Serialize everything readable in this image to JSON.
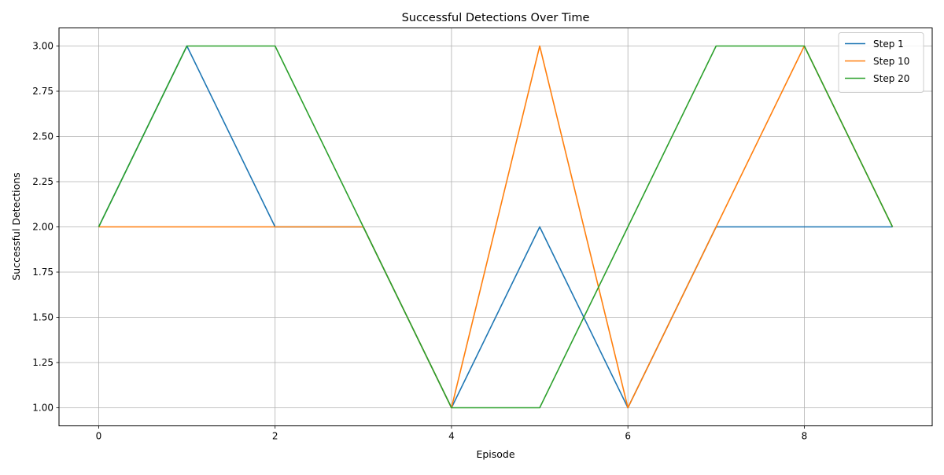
{
  "chart_data": {
    "type": "line",
    "title": "Successful Detections Over Time",
    "xlabel": "Episode",
    "ylabel": "Successful Detections",
    "x": [
      0,
      1,
      2,
      3,
      4,
      5,
      6,
      7,
      8,
      9
    ],
    "xlim": [
      -0.45,
      9.45
    ],
    "ylim": [
      0.9,
      3.1
    ],
    "xticks": [
      0,
      2,
      4,
      6,
      8
    ],
    "yticks": [
      1.0,
      1.25,
      1.5,
      1.75,
      2.0,
      2.25,
      2.5,
      2.75,
      3.0
    ],
    "ytick_labels": [
      "1.00",
      "1.25",
      "1.50",
      "1.75",
      "2.00",
      "2.25",
      "2.50",
      "2.75",
      "3.00"
    ],
    "grid": true,
    "legend_position": "top-right",
    "series": [
      {
        "name": "Step 1",
        "color": "#1f77b4",
        "values": [
          2,
          3,
          2,
          2,
          1,
          2,
          1,
          2,
          2,
          2
        ]
      },
      {
        "name": "Step 10",
        "color": "#ff7f0e",
        "values": [
          2,
          2,
          2,
          2,
          1,
          3,
          1,
          2,
          3,
          2
        ]
      },
      {
        "name": "Step 20",
        "color": "#2ca02c",
        "values": [
          2,
          3,
          3,
          2,
          1,
          1,
          2,
          3,
          3,
          2
        ]
      }
    ]
  }
}
